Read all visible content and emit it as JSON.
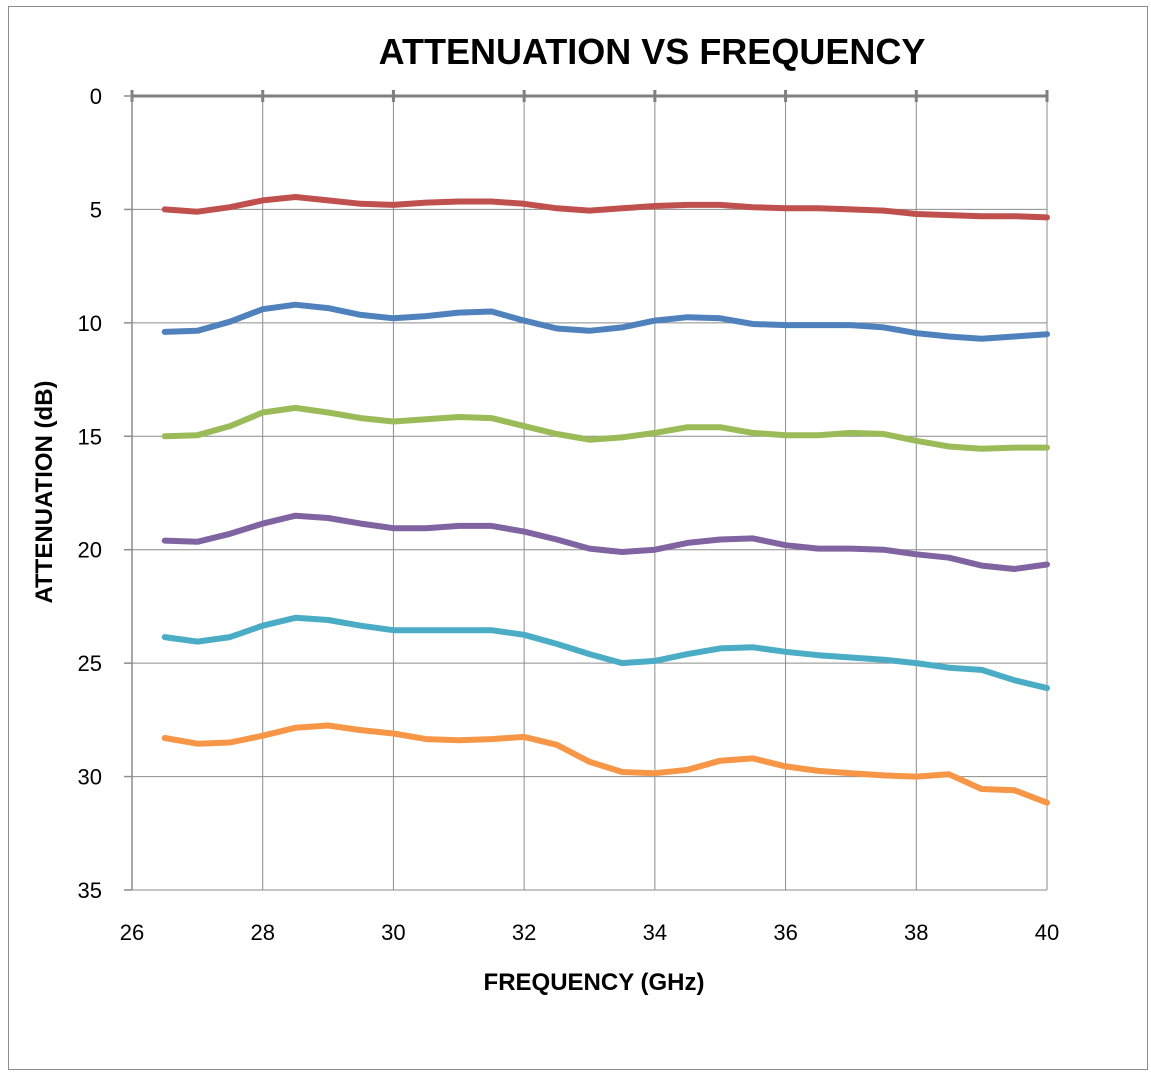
{
  "chart_data": {
    "type": "line",
    "title": "ATTENUATION VS FREQUENCY",
    "xlabel": "FREQUENCY (GHz)",
    "ylabel": "ATTENUATION (dB)",
    "xlim": [
      26,
      40
    ],
    "ylim": [
      0,
      35
    ],
    "y_inverted": true,
    "grid": true,
    "legend": "none",
    "x_ticks": [
      "26",
      "28",
      "30",
      "32",
      "34",
      "36",
      "38",
      "40"
    ],
    "y_ticks": [
      "0",
      "5",
      "10",
      "15",
      "20",
      "25",
      "30",
      "35"
    ],
    "x": [
      26.5,
      27,
      27.5,
      28,
      28.5,
      29,
      29.5,
      30,
      30.5,
      31,
      31.5,
      32,
      32.5,
      33,
      33.5,
      34,
      34.5,
      35,
      35.5,
      36,
      36.5,
      37,
      37.5,
      38,
      38.5,
      39,
      39.5,
      40
    ],
    "series": [
      {
        "color": "#c0504d",
        "values": [
          5.0,
          5.1,
          4.9,
          4.6,
          4.45,
          4.6,
          4.75,
          4.8,
          4.7,
          4.65,
          4.65,
          4.75,
          4.95,
          5.05,
          4.95,
          4.85,
          4.8,
          4.8,
          4.9,
          4.95,
          4.95,
          5.0,
          5.05,
          5.2,
          5.25,
          5.3,
          5.3,
          5.35
        ]
      },
      {
        "color": "#4f81bd",
        "values": [
          10.4,
          10.35,
          9.95,
          9.4,
          9.2,
          9.35,
          9.65,
          9.8,
          9.7,
          9.55,
          9.5,
          9.9,
          10.25,
          10.35,
          10.2,
          9.9,
          9.75,
          9.8,
          10.05,
          10.1,
          10.1,
          10.1,
          10.2,
          10.45,
          10.6,
          10.7,
          10.6,
          10.5
        ]
      },
      {
        "color": "#9bbb59",
        "values": [
          15.0,
          14.95,
          14.55,
          13.95,
          13.75,
          13.95,
          14.2,
          14.35,
          14.25,
          14.15,
          14.2,
          14.55,
          14.9,
          15.15,
          15.05,
          14.85,
          14.6,
          14.6,
          14.85,
          14.95,
          14.95,
          14.85,
          14.9,
          15.2,
          15.45,
          15.55,
          15.5,
          15.5
        ]
      },
      {
        "color": "#8064a2",
        "values": [
          19.6,
          19.65,
          19.3,
          18.85,
          18.5,
          18.6,
          18.85,
          19.05,
          19.05,
          18.95,
          18.95,
          19.2,
          19.55,
          19.95,
          20.1,
          20.0,
          19.7,
          19.55,
          19.5,
          19.8,
          19.95,
          19.95,
          20.0,
          20.2,
          20.35,
          20.7,
          20.85,
          20.65
        ]
      },
      {
        "color": "#4bacc6",
        "values": [
          23.85,
          24.05,
          23.85,
          23.35,
          23.0,
          23.1,
          23.35,
          23.55,
          23.55,
          23.55,
          23.55,
          23.75,
          24.15,
          24.6,
          25.0,
          24.9,
          24.6,
          24.35,
          24.3,
          24.5,
          24.65,
          24.75,
          24.85,
          25.0,
          25.2,
          25.3,
          25.75,
          26.1
        ]
      },
      {
        "color": "#f79646",
        "values": [
          28.3,
          28.55,
          28.5,
          28.2,
          27.85,
          27.75,
          27.95,
          28.1,
          28.35,
          28.4,
          28.35,
          28.25,
          28.6,
          29.35,
          29.8,
          29.85,
          29.7,
          29.3,
          29.2,
          29.55,
          29.75,
          29.85,
          29.95,
          30.0,
          29.9,
          30.55,
          30.6,
          31.15
        ]
      }
    ]
  }
}
